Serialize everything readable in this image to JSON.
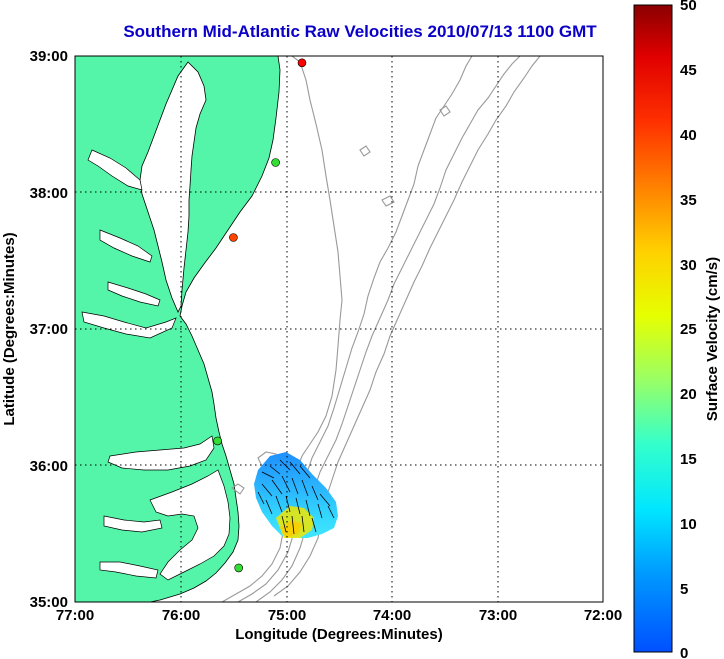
{
  "title": "Southern Mid-Atlantic Raw Velocities 2010/07/13 1100 GMT",
  "map": {
    "xlabel": "Longitude (Degrees:Minutes)",
    "ylabel": "Latitude (Degrees:Minutes)",
    "x_ticks": [
      "77:00",
      "76:00",
      "75:00",
      "74:00",
      "73:00",
      "72:00"
    ],
    "y_ticks": [
      "39:00",
      "38:00",
      "37:00",
      "36:00",
      "35:00"
    ],
    "lon_range": [
      -77,
      -72
    ],
    "lat_range": [
      35,
      39
    ],
    "land_color": "#54f5a8",
    "coast_color": "#000000",
    "bathymetry_color": "#999999",
    "grid": true
  },
  "colorbar": {
    "label": "Surface Velocity (cm/s)",
    "ticks": [
      "50",
      "45",
      "40",
      "35",
      "30",
      "25",
      "20",
      "15",
      "10",
      "5",
      "0"
    ],
    "range": [
      0,
      50
    ],
    "colormap": "jet"
  },
  "stations": [
    {
      "lon": -74.85,
      "lat": 38.95,
      "color": "#ff0000"
    },
    {
      "lon": -75.1,
      "lat": 38.22,
      "color": "#33dd33"
    },
    {
      "lon": -75.5,
      "lat": 37.67,
      "color": "#ff4400"
    },
    {
      "lon": -75.65,
      "lat": 36.18,
      "color": "#33dd33"
    },
    {
      "lon": -75.45,
      "lat": 35.25,
      "color": "#33dd33"
    }
  ]
}
